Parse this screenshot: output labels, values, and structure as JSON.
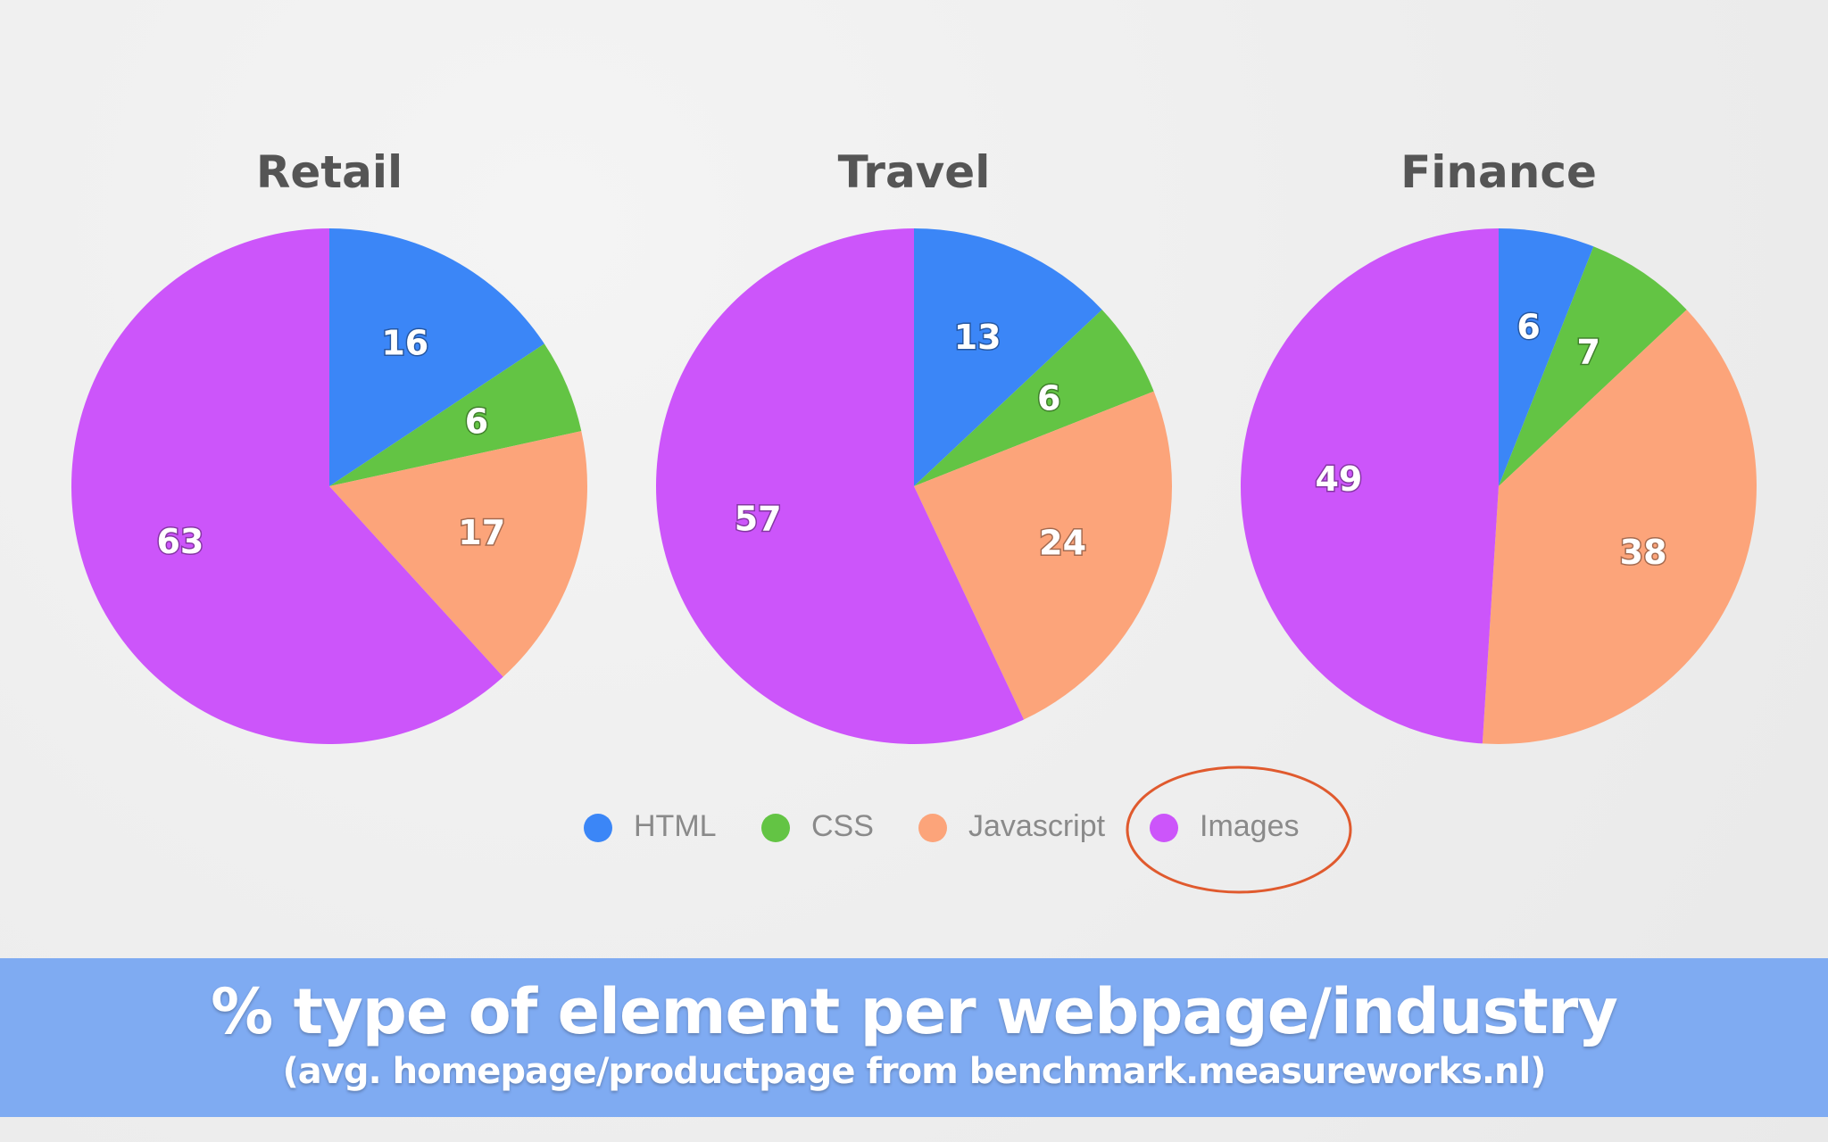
{
  "chart_data": [
    {
      "type": "pie",
      "title": "Retail",
      "slices": [
        {
          "label": "HTML",
          "value": 16
        },
        {
          "label": "CSS",
          "value": 6
        },
        {
          "label": "Javascript",
          "value": 17
        },
        {
          "label": "Images",
          "value": 63
        }
      ]
    },
    {
      "type": "pie",
      "title": "Travel",
      "slices": [
        {
          "label": "HTML",
          "value": 13
        },
        {
          "label": "CSS",
          "value": 6
        },
        {
          "label": "Javascript",
          "value": 24
        },
        {
          "label": "Images",
          "value": 57
        }
      ]
    },
    {
      "type": "pie",
      "title": "Finance",
      "slices": [
        {
          "label": "HTML",
          "value": 6
        },
        {
          "label": "CSS",
          "value": 7
        },
        {
          "label": "Javascript",
          "value": 38
        },
        {
          "label": "Images",
          "value": 49
        }
      ]
    }
  ],
  "legend": [
    {
      "label": "HTML",
      "color": "#3b86f7"
    },
    {
      "label": "CSS",
      "color": "#63c444"
    },
    {
      "label": "Javascript",
      "color": "#fca47a"
    },
    {
      "label": "Images",
      "color": "#cc55fa"
    }
  ],
  "highlight_color": "#e05a2e",
  "highlighted_legend_item": "Images",
  "banner": {
    "title": "% type of element per webpage/industry",
    "subtitle": "(avg. homepage/productpage from benchmark.measureworks.nl)",
    "color": "#7fabf2"
  }
}
